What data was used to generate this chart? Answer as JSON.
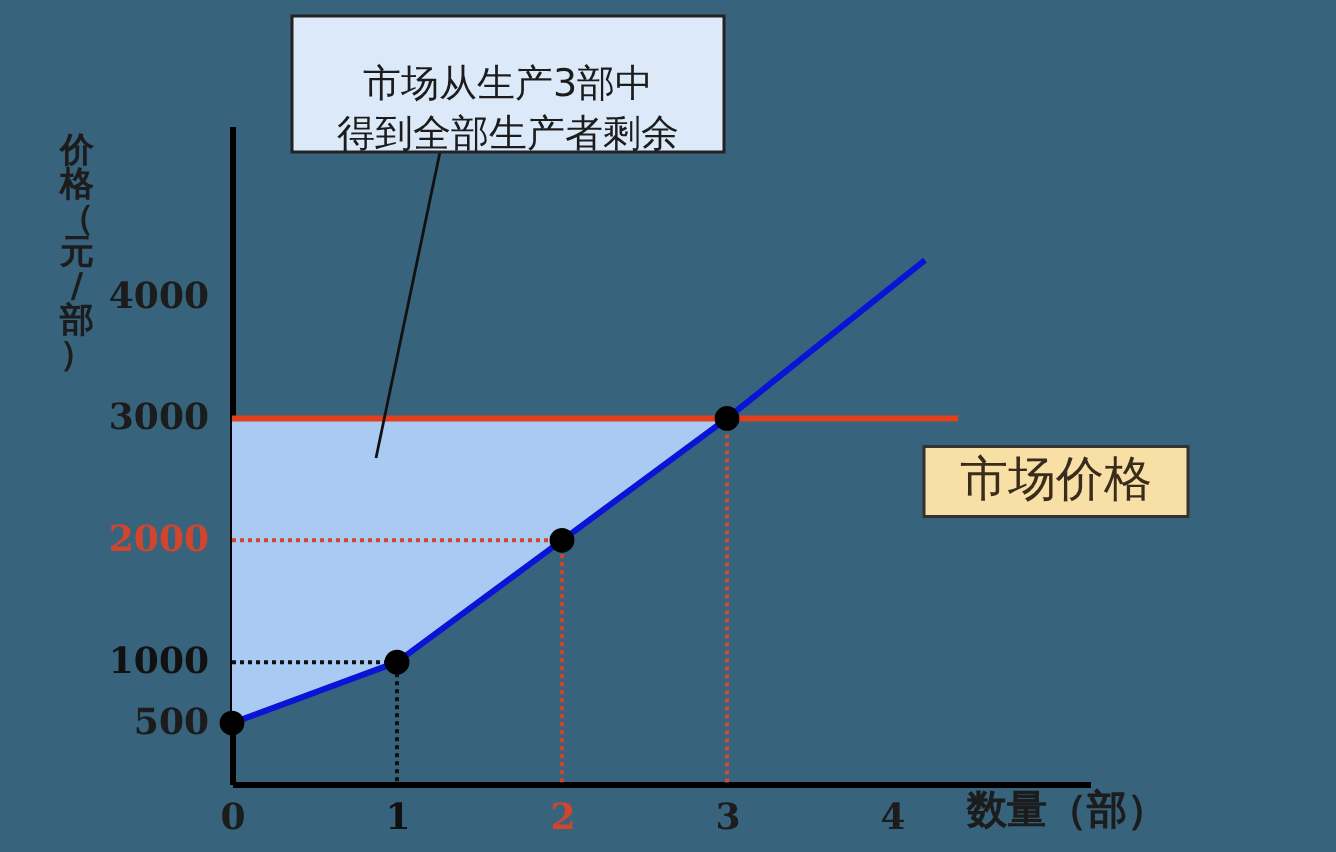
{
  "chart_data": {
    "type": "line",
    "xlabel": "数量（部）",
    "ylabel": "价格（元/部）",
    "xlim": [
      0,
      5.2
    ],
    "ylim": [
      0,
      5400
    ],
    "xticks": [
      0,
      1,
      2,
      3,
      4
    ],
    "yticks": [
      500,
      1000,
      2000,
      3000,
      4000
    ],
    "annotations": [
      "市场从生产3部中得到全部生产者剩余"
    ],
    "series": [
      {
        "line_style": "dotted",
        "color": "#111111",
        "x": [
          0,
          1,
          1
        ],
        "values": [
          1000,
          1000,
          0
        ]
      },
      {
        "line_style": "dotted",
        "color": "#d2452d",
        "x": [
          0,
          2,
          2
        ],
        "values": [
          2000,
          2000,
          0
        ]
      },
      {
        "line_style": "dotted",
        "color": "#cf4a3a",
        "x": [
          3,
          3
        ],
        "values": [
          3000,
          0
        ]
      },
      {
        "name": "市场价格",
        "line_style": "solid",
        "color": "#e2401d",
        "x": [
          0,
          4.4
        ],
        "values": [
          3000,
          3000
        ]
      },
      {
        "line_style": "solid",
        "color": "#0a14d6",
        "x": [
          0,
          1,
          2,
          3,
          4.2
        ],
        "values": [
          500,
          1000,
          2000,
          3000,
          4300
        ],
        "lower": [
          500,
          1000,
          2000,
          3000,
          null
        ],
        "upper": [
          3000,
          3000,
          3000,
          3000,
          null
        ]
      },
      {
        "type": "scatter",
        "marker": "circle",
        "color": "#000000",
        "x": [
          0,
          1,
          2,
          3
        ],
        "values": [
          500,
          1000,
          2000,
          3000
        ]
      }
    ]
  }
}
